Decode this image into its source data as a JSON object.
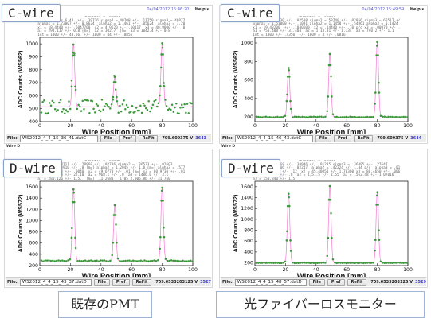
{
  "help_label": "Help ▾",
  "panels": [
    {
      "key": "tl",
      "timestamp": "04/04/2012 15:46:20",
      "stats": "                        Goodness = .46601\n  Wire Signals 6.48  +/- .39716 sigma2 = 40708 +/- .11750 sigma3 = 46877 +/- .12906\n  alpha1 = 1.72007 +/- 0.8624  alpha2 = 1.1461 +/- .05624  alpha3 = 1.2026 +/- .06417\n  x1 = 18.4440 +/- .6047700  x2 = 4.9620 +/- .10117  x3 = 40.9000 +/- .04703\n  a1 = 293.117 +/- 0.8 [m=]  a2 = 302.7  [m=] a3 = 1042.4 +/- 0.8\n  Int = 1000 +/- 43.56  +/- 1000 = 44 +/- .8856",
      "ylabel": "ADC Counts (WS562)",
      "xlabel": "Wire Position [mm]",
      "yticks": [
        400,
        500,
        600,
        700,
        800,
        900,
        1000
      ],
      "ylim": [
        400,
        1050
      ],
      "xticks": [
        0,
        20,
        40,
        60,
        80,
        100
      ],
      "xlim": [
        0,
        100
      ],
      "file_label": "File:",
      "file_name": "WS2012_4_4_15_36_41.datC",
      "buttons": [
        "File",
        "Pref",
        "ReFit"
      ],
      "voltage": "799.609375 V",
      "number": "3643",
      "points_color": "#3c9a3c",
      "fit_color": "#f27ad2"
    },
    {
      "key": "tr",
      "timestamp": "04/04/2012 15:49:59",
      "stats": "                        Goodness = .46601\n  sigma1 = .67930 +/- .02508 sigma2 = 53740 +/- .02856 sigma3 = 65517 +/- .04813\n  alpha1 = 1.51000 +/- .1081 alpha2 = 1.1450 +/- .54861 alpha3 = 1.1424 +/- .01481\n  x1 = 19.43200  +/- .1040600  x2 = .14440 +/- .70 p/c x3 = .00070 +/- .06601\n  a1 = 753.408 +/- 31.404  a2 = 1,13.01 +/- 1.134  a3 = 790.2 +/- 1.1\n  Int = 1000 +/- .4350  +/- 1000 = 4 +/- .0816",
      "ylabel": "ADC Counts (WS562)",
      "xlabel": "Wire Position [mm]",
      "yticks": [
        200,
        400,
        600,
        800,
        1000
      ],
      "ylim": [
        150,
        1060
      ],
      "xticks": [
        0,
        20,
        40,
        60,
        80,
        100
      ],
      "xlim": [
        0,
        100
      ],
      "file_label": "File:",
      "file_name": "WS2012_4_4_15_46_43.datC",
      "buttons": [
        "File",
        "Pref",
        "ReFit"
      ],
      "voltage": "799.609375 V",
      "number": "3644",
      "points_color": "#3c9a3c",
      "fit_color": "#f27ad2"
    },
    {
      "key": "bl",
      "timestamp": "",
      "stats": "                        Goodness = .46606\n  sigma1 = .80711 +/- .28960 +/- .02796 sigma2 = .36573 +/- .02603\n  alpha1 = 4.8910 +/- .8 [m=] alpha2 = 1.2045 +/- 1.0 [m=] alpha3 = .5770\n  x1 = 22.1080 +/- .0040  x2 = 49.6770 +/- .01 [m=] x3 = 80.9730 +/- .01\n  a1 = 1268.18 +/- 22.10  a2 = 968.1 +/- .0  a3 = 1486.0 +/- 3.1\n  a7 = 280.126 +/- 1.5.  [m=]  11.2680   1.05 2,005.86 +/- 31.760",
      "ylabel": "ADC Counts (WS572)",
      "xlabel": "Wire Position [mm]",
      "yticks": [
        200,
        400,
        600,
        800,
        1000,
        1200,
        1400,
        1600
      ],
      "ylim": [
        200,
        1700
      ],
      "xticks": [
        0,
        20,
        40,
        60,
        80,
        100
      ],
      "xlim": [
        0,
        100
      ],
      "file_label": "File:",
      "file_name": "WS2012_4_4_15_43_37.datD",
      "buttons": [
        "File",
        "Pref",
        "ReFit"
      ],
      "voltage": "709.6533203125 V",
      "number": "3527",
      "points_color": "#3c9a3c",
      "fit_color": "#f27ad2"
    },
    {
      "key": "br",
      "timestamp": "",
      "stats": "                        Goodness = .46603\n  sigma1 = .01268 +/- .30946 +/- .01235 sigma3 = .36395 +/- .27647\n  alpha1 = 1.5406 +/- .02247  alpha2 = .42224 +/- 1.44 p/c  alpha3 = .01480\n  x1 = 22.11070 +/- .12  x2 = 45.40051 +/- 1.70300 x3 = 80.4650 +/- .0063\n  a1 = 1264.60 +/- .8  a2 = 1,51.5 +/- 1.55  a3 = 1562.48 +/- 1.07016\n  a7 = 150.340 +/- 1.5",
      "ylabel": "ADC Counts (WS572)",
      "xlabel": "Wire Position [mm]",
      "yticks": [
        200,
        400,
        600,
        800,
        1000,
        1200,
        1400,
        1600
      ],
      "ylim": [
        150,
        1700
      ],
      "xticks": [
        0,
        20,
        40,
        60,
        80,
        100
      ],
      "xlim": [
        0,
        100
      ],
      "file_label": "File:",
      "file_name": "WS2012_4_4_15_48_57.datD",
      "buttons": [
        "File",
        "Pref",
        "ReFit"
      ],
      "voltage": "709.6533203125 V",
      "number": "3529",
      "points_color": "#3c9a3c",
      "fit_color": "#f27ad2"
    }
  ],
  "labels": {
    "c_wire_left": "C-wire",
    "c_wire_right": "C-wire",
    "d_wire_left": "D-wire",
    "d_wire_right": "D-wire"
  },
  "captions": {
    "left": "既存のPMT",
    "right": "光ファイバーロスモニター"
  },
  "separators": {
    "left": "Wire D",
    "right": "Wire D"
  },
  "chart_data": [
    {
      "type": "scatter",
      "panel": "tl",
      "xlabel": "Wire Position [mm]",
      "ylabel": "ADC Counts (WS562)",
      "xlim": [
        0,
        100
      ],
      "ylim": [
        400,
        1050
      ],
      "baseline": 515,
      "noise": 55,
      "peaks": [
        {
          "x": 22,
          "height": 480,
          "sigma": 0.8
        },
        {
          "x": 49,
          "height": 230,
          "sigma": 0.8
        },
        {
          "x": 80,
          "height": 490,
          "sigma": 0.8
        }
      ]
    },
    {
      "type": "scatter",
      "panel": "tr",
      "xlabel": "Wire Position [mm]",
      "ylabel": "ADC Counts (WS562)",
      "xlim": [
        0,
        100
      ],
      "ylim": [
        150,
        1060
      ],
      "baseline": 200,
      "noise": 4,
      "peaks": [
        {
          "x": 22,
          "height": 530,
          "sigma": 0.8
        },
        {
          "x": 49,
          "height": 680,
          "sigma": 0.8
        },
        {
          "x": 80,
          "height": 810,
          "sigma": 0.8
        }
      ]
    },
    {
      "type": "scatter",
      "panel": "bl",
      "xlabel": "Wire Position [mm]",
      "ylabel": "ADC Counts (WS572)",
      "xlim": [
        0,
        100
      ],
      "ylim": [
        200,
        1700
      ],
      "baseline": 285,
      "noise": 10,
      "peaks": [
        {
          "x": 22,
          "height": 1270,
          "sigma": 0.8
        },
        {
          "x": 49,
          "height": 990,
          "sigma": 0.8
        },
        {
          "x": 80,
          "height": 1300,
          "sigma": 0.8
        }
      ]
    },
    {
      "type": "scatter",
      "panel": "br",
      "xlabel": "Wire Position [mm]",
      "ylabel": "ADC Counts (WS572)",
      "xlim": [
        0,
        100
      ],
      "ylim": [
        150,
        1700
      ],
      "baseline": 200,
      "noise": 4,
      "peaks": [
        {
          "x": 22,
          "height": 1270,
          "sigma": 0.8
        },
        {
          "x": 49,
          "height": 1410,
          "sigma": 0.8
        },
        {
          "x": 80,
          "height": 1300,
          "sigma": 0.8
        }
      ]
    }
  ]
}
